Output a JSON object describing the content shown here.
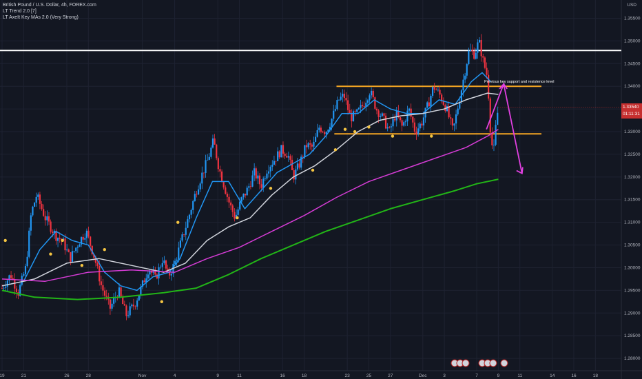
{
  "header": {
    "symbol_line": "British Pound / U.S. Dollar, 4h, FOREX.com",
    "indicators": [
      "LT Trend 2.0 [7]",
      "LT AxeIt Key MAs 2.0 (Very Strong)"
    ],
    "currency": "USD"
  },
  "price_tag": {
    "price": "1.33540",
    "countdown": "01:11:31"
  },
  "annotation": {
    "text": "Previous key support and resistence level"
  },
  "colors": {
    "background": "#131722",
    "up": "#2196f3",
    "down": "#ef3340",
    "ma_fast": "#2196f3",
    "ma_slow": "#d1d4dc",
    "ma_magenta": "#d63cd6",
    "ma_green": "#22b517",
    "level_white": "#ffffff",
    "level_orange": "#f5a623",
    "arrow": "#e040e0",
    "dot": "#f5c542"
  },
  "chart_data": {
    "type": "candlestick",
    "ylim": [
      1.2785,
      1.3575
    ],
    "yticks": [
      "1.35500",
      "1.35000",
      "1.34500",
      "1.34000",
      "1.33500",
      "1.33000",
      "1.32500",
      "1.32000",
      "1.31500",
      "1.31000",
      "1.30500",
      "1.30000",
      "1.29500",
      "1.29000",
      "1.28500",
      "1.28000"
    ],
    "ytick_values": [
      1.355,
      1.35,
      1.345,
      1.34,
      1.335,
      1.33,
      1.325,
      1.32,
      1.315,
      1.31,
      1.305,
      1.3,
      1.295,
      1.29,
      1.285,
      1.28
    ],
    "xticks": [
      "19",
      "21",
      "26",
      "28",
      "Nov",
      "4",
      "9",
      "11",
      "16",
      "18",
      "23",
      "25",
      "27",
      "Dec",
      "3",
      "7",
      "9",
      "11",
      "14",
      "16",
      "18"
    ],
    "xtick_days": [
      0,
      2,
      6,
      8,
      13,
      16,
      20,
      22,
      26,
      28,
      32,
      34,
      36,
      39,
      41,
      44,
      46,
      48,
      51,
      53,
      55
    ],
    "x_domain_days": [
      0,
      56
    ],
    "horizontal_levels": [
      {
        "name": "white-resistance",
        "price": 1.3479
      },
      {
        "name": "orange-top",
        "price": 1.34,
        "from_day": 31.0,
        "to_day": 50
      },
      {
        "name": "orange-bottom",
        "price": 1.3295,
        "from_day": 30.8,
        "to_day": 50
      }
    ],
    "close_path": [
      [
        0,
        1.2955
      ],
      [
        0.8,
        1.2985
      ],
      [
        1.5,
        1.2945
      ],
      [
        2.2,
        1.3
      ],
      [
        2.7,
        1.312
      ],
      [
        3.2,
        1.316
      ],
      [
        4,
        1.311
      ],
      [
        5,
        1.307
      ],
      [
        5.6,
        1.306
      ],
      [
        6.3,
        1.302
      ],
      [
        7.2,
        1.306
      ],
      [
        7.8,
        1.308
      ],
      [
        8.6,
        1.302
      ],
      [
        9.2,
        1.296
      ],
      [
        10,
        1.291
      ],
      [
        10.8,
        1.295
      ],
      [
        11.5,
        1.2895
      ],
      [
        12.3,
        1.292
      ],
      [
        12.9,
        1.2955
      ],
      [
        13.6,
        1.3
      ],
      [
        14.2,
        1.2975
      ],
      [
        14.9,
        1.302
      ],
      [
        15.4,
        1.298
      ],
      [
        16,
        1.301
      ],
      [
        16.7,
        1.3065
      ],
      [
        17.4,
        1.312
      ],
      [
        18,
        1.317
      ],
      [
        18.6,
        1.321
      ],
      [
        19.1,
        1.324
      ],
      [
        19.6,
        1.328
      ],
      [
        20.1,
        1.322
      ],
      [
        20.6,
        1.318
      ],
      [
        21.1,
        1.314
      ],
      [
        21.6,
        1.311
      ],
      [
        22.2,
        1.315
      ],
      [
        22.8,
        1.3175
      ],
      [
        23.4,
        1.321
      ],
      [
        24,
        1.318
      ],
      [
        24.6,
        1.322
      ],
      [
        25.3,
        1.324
      ],
      [
        25.9,
        1.326
      ],
      [
        26.5,
        1.325
      ],
      [
        27,
        1.32
      ],
      [
        27.6,
        1.323
      ],
      [
        28.2,
        1.327
      ],
      [
        28.8,
        1.3265
      ],
      [
        29.4,
        1.331
      ],
      [
        30,
        1.33
      ],
      [
        30.6,
        1.333
      ],
      [
        31.2,
        1.337
      ],
      [
        31.7,
        1.338
      ],
      [
        32.3,
        1.333
      ],
      [
        32.9,
        1.334
      ],
      [
        33.5,
        1.336
      ],
      [
        34.1,
        1.339
      ],
      [
        34.7,
        1.335
      ],
      [
        35.3,
        1.333
      ],
      [
        35.9,
        1.33
      ],
      [
        36.5,
        1.334
      ],
      [
        37.1,
        1.331
      ],
      [
        37.7,
        1.335
      ],
      [
        38.3,
        1.33
      ],
      [
        38.9,
        1.332
      ],
      [
        39.5,
        1.336
      ],
      [
        40,
        1.34
      ],
      [
        40.6,
        1.338
      ],
      [
        41.2,
        1.335
      ],
      [
        41.8,
        1.33
      ],
      [
        42.3,
        1.336
      ],
      [
        42.8,
        1.342
      ],
      [
        43.3,
        1.348
      ],
      [
        43.8,
        1.347
      ],
      [
        44.2,
        1.35
      ],
      [
        44.6,
        1.3455
      ],
      [
        45,
        1.342
      ],
      [
        45.3,
        1.329
      ],
      [
        45.55,
        1.325
      ],
      [
        45.8,
        1.332
      ],
      [
        46,
        1.3354
      ]
    ],
    "series": [
      {
        "name": "ma_fast",
        "points": [
          [
            0,
            1.296
          ],
          [
            2,
            1.297
          ],
          [
            3.5,
            1.304
          ],
          [
            5,
            1.308
          ],
          [
            6.5,
            1.306
          ],
          [
            8,
            1.305
          ],
          [
            9.5,
            1.299
          ],
          [
            11,
            1.296
          ],
          [
            12.5,
            1.295
          ],
          [
            14,
            1.298
          ],
          [
            15.5,
            1.299
          ],
          [
            16.5,
            1.302
          ],
          [
            18,
            1.311
          ],
          [
            19.5,
            1.319
          ],
          [
            21,
            1.319
          ],
          [
            22.5,
            1.313
          ],
          [
            24,
            1.317
          ],
          [
            25.5,
            1.321
          ],
          [
            27,
            1.323
          ],
          [
            28.5,
            1.325
          ],
          [
            30,
            1.329
          ],
          [
            31.5,
            1.334
          ],
          [
            33,
            1.334
          ],
          [
            34.5,
            1.337
          ],
          [
            36,
            1.335
          ],
          [
            37.5,
            1.334
          ],
          [
            39,
            1.334
          ],
          [
            40.5,
            1.337
          ],
          [
            42,
            1.336
          ],
          [
            43.5,
            1.341
          ],
          [
            44.5,
            1.343
          ],
          [
            45.3,
            1.341
          ]
        ]
      },
      {
        "name": "ma_slow",
        "points": [
          [
            0,
            1.296
          ],
          [
            3,
            1.2975
          ],
          [
            6,
            1.301
          ],
          [
            9,
            1.302
          ],
          [
            12,
            1.3005
          ],
          [
            15,
            1.299
          ],
          [
            17,
            1.301
          ],
          [
            19,
            1.306
          ],
          [
            21,
            1.309
          ],
          [
            23,
            1.311
          ],
          [
            25,
            1.316
          ],
          [
            27,
            1.32
          ],
          [
            29,
            1.3225
          ],
          [
            31,
            1.326
          ],
          [
            33,
            1.33
          ],
          [
            35,
            1.3325
          ],
          [
            37,
            1.3335
          ],
          [
            39,
            1.334
          ],
          [
            41,
            1.335
          ],
          [
            43,
            1.337
          ],
          [
            45,
            1.3385
          ],
          [
            46,
            1.3382
          ]
        ]
      },
      {
        "name": "ma_magenta",
        "points": [
          [
            0,
            1.2975
          ],
          [
            4,
            1.297
          ],
          [
            8,
            1.299
          ],
          [
            12,
            1.2995
          ],
          [
            16,
            1.299
          ],
          [
            19,
            1.302
          ],
          [
            22,
            1.3045
          ],
          [
            25,
            1.308
          ],
          [
            28,
            1.3115
          ],
          [
            31,
            1.3155
          ],
          [
            34,
            1.319
          ],
          [
            37,
            1.3215
          ],
          [
            40,
            1.324
          ],
          [
            43,
            1.3265
          ],
          [
            45,
            1.329
          ],
          [
            46,
            1.3305
          ]
        ]
      },
      {
        "name": "ma_green",
        "points": [
          [
            0,
            1.295
          ],
          [
            3,
            1.2935
          ],
          [
            7,
            1.293
          ],
          [
            11,
            1.2935
          ],
          [
            15,
            1.2945
          ],
          [
            18,
            1.2955
          ],
          [
            21,
            1.2985
          ],
          [
            24,
            1.302
          ],
          [
            27,
            1.305
          ],
          [
            30,
            1.308
          ],
          [
            33,
            1.3105
          ],
          [
            36,
            1.313
          ],
          [
            39,
            1.315
          ],
          [
            42,
            1.317
          ],
          [
            44,
            1.3185
          ],
          [
            46,
            1.3195
          ]
        ]
      }
    ],
    "signal_dots": [
      [
        0.3,
        1.306
      ],
      [
        4.5,
        1.303
      ],
      [
        5.6,
        1.306
      ],
      [
        7.4,
        1.3005
      ],
      [
        9.5,
        1.304
      ],
      [
        16.3,
        1.31
      ],
      [
        14.8,
        1.2925
      ],
      [
        21.8,
        1.311
      ],
      [
        24.9,
        1.3175
      ],
      [
        28.8,
        1.3215
      ],
      [
        30.9,
        1.326
      ],
      [
        31.8,
        1.3305
      ],
      [
        32.7,
        1.33
      ],
      [
        34,
        1.331
      ],
      [
        36.2,
        1.329
      ],
      [
        39.8,
        1.329
      ]
    ],
    "forecast_arrow": [
      [
        44.9,
        1.3305
      ],
      [
        46.5,
        1.3405
      ],
      [
        48.2,
        1.3208
      ]
    ]
  }
}
